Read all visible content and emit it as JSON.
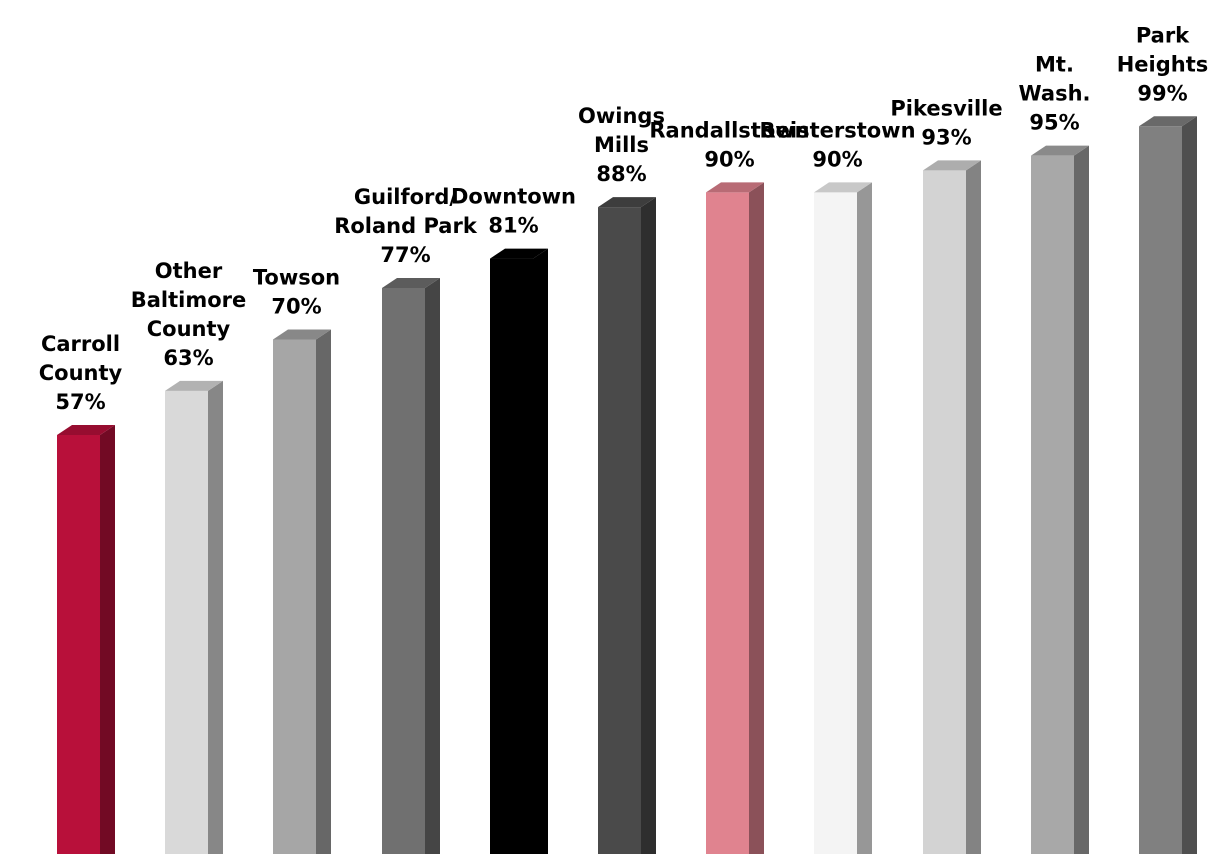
{
  "chart_data": {
    "type": "bar",
    "style": "3d-columns",
    "title": "",
    "xlabel": "",
    "ylabel": "",
    "ylim": [
      0,
      100
    ],
    "grid": false,
    "legend": "none",
    "categories": [
      "Carroll County",
      "Other Baltimore County",
      "Towson",
      "Guilford/ Roland Park",
      "Downtown",
      "Owings Mills",
      "Randallstown",
      "Reisterstown",
      "Pikesville",
      "Mt. Wash.",
      "Park Heights"
    ],
    "values": [
      57,
      63,
      70,
      77,
      81,
      88,
      90,
      90,
      93,
      95,
      99
    ],
    "value_labels": [
      "57%",
      "63%",
      "70%",
      "77%",
      "81%",
      "88%",
      "90%",
      "90%",
      "93%",
      "95%",
      "99%"
    ],
    "label_lines": [
      [
        "Carroll",
        "County"
      ],
      [
        "Other",
        "Baltimore",
        "County"
      ],
      [
        "Towson"
      ],
      [
        "Guilford/",
        "Roland Park"
      ],
      [
        "Downtown"
      ],
      [
        "Owings",
        "Mills"
      ],
      [
        "Randallstown"
      ],
      [
        "Reisterstown"
      ],
      [
        "Pikesville"
      ],
      [
        "Mt.",
        "Wash."
      ],
      [
        "Park",
        "Heights"
      ]
    ],
    "colors": [
      "#b8103a",
      "#d9d9d9",
      "#a6a6a6",
      "#707070",
      "#000000",
      "#4a4a4a",
      "#e0838f",
      "#f4f4f4",
      "#d3d3d3",
      "#a8a8a8",
      "#808080"
    ]
  }
}
